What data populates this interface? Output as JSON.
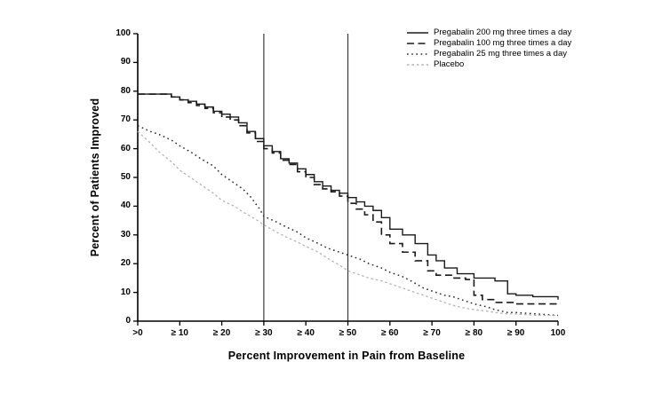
{
  "chart_data": {
    "type": "line",
    "title": "",
    "xlabel": "Percent Improvement in Pain from Baseline",
    "ylabel": "Percent of Patients Improved",
    "xlim": [
      0,
      100
    ],
    "ylim": [
      0,
      100
    ],
    "grid": false,
    "legend_position": "top-right",
    "x_tick_labels": [
      ">0",
      "≥ 10",
      "≥ 20",
      "≥ 30",
      "≥ 40",
      "≥ 50",
      "≥ 60",
      "≥ 70",
      "≥ 80",
      "≥ 90",
      "100"
    ],
    "y_tick_labels": [
      "100",
      "90",
      "80",
      "70",
      "60",
      "50",
      "40",
      "30",
      "20",
      "10",
      "0"
    ],
    "reference_lines_x": [
      30,
      50
    ],
    "axis_color": "#000000",
    "reference_line_color": "#3a3a3a",
    "series": [
      {
        "name": "Pregabalin 200 mg three times a day",
        "color": "#1a1a1a",
        "dash": "solid",
        "width": 1.4,
        "interpolation": "step",
        "x": [
          0,
          5,
          8,
          10,
          12,
          14,
          16,
          18,
          20,
          22,
          24,
          26,
          28,
          30,
          32,
          34,
          36,
          38,
          40,
          42,
          44,
          46,
          48,
          50,
          52,
          54,
          56,
          58,
          60,
          63,
          66,
          69,
          71,
          73,
          76,
          80,
          85,
          88,
          90,
          94,
          100
        ],
        "y": [
          79,
          79,
          78,
          77,
          76.5,
          75.5,
          74.5,
          73,
          72,
          71,
          69,
          66,
          63.5,
          61,
          59,
          56.5,
          55,
          53,
          51,
          48.5,
          47,
          45.5,
          44.5,
          43,
          41.5,
          40,
          38.5,
          36,
          32,
          30,
          27,
          23,
          21,
          18.5,
          16.5,
          15,
          14,
          9.5,
          9,
          8.5,
          7.5
        ]
      },
      {
        "name": "Pregabalin 100 mg three times a day",
        "color": "#1a1a1a",
        "dash": "dashed",
        "width": 1.6,
        "interpolation": "step",
        "x": [
          0,
          5,
          8,
          10,
          12,
          14,
          16,
          18,
          20,
          22,
          24,
          26,
          28,
          30,
          32,
          34,
          36,
          38,
          40,
          42,
          44,
          46,
          48,
          50,
          52,
          54,
          56,
          58,
          60,
          63,
          66,
          69,
          71,
          75,
          78,
          80,
          82,
          85,
          90,
          95,
          100
        ],
        "y": [
          79,
          79,
          78,
          77,
          76,
          75,
          74,
          72.5,
          71,
          70,
          68,
          65.5,
          62.5,
          60,
          58.5,
          56,
          54.5,
          52,
          50,
          47.5,
          46,
          45,
          43.5,
          41,
          39,
          37,
          34.5,
          30,
          27,
          24,
          21,
          17.5,
          16,
          15,
          14.5,
          9,
          7.5,
          6.5,
          6,
          6,
          5.5
        ]
      },
      {
        "name": "Pregabalin 25 mg three times a day",
        "color": "#262626",
        "dash": "dotted",
        "width": 1.5,
        "interpolation": "linear",
        "x": [
          0,
          3,
          5,
          8,
          10,
          13,
          15,
          18,
          20,
          23,
          25,
          27,
          29,
          30,
          33,
          35,
          38,
          40,
          43,
          45,
          48,
          50,
          53,
          55,
          58,
          60,
          63,
          65,
          68,
          70,
          73,
          75,
          78,
          80,
          83,
          85,
          88,
          90,
          95,
          100
        ],
        "y": [
          68,
          66,
          65,
          63,
          61,
          58.5,
          56.5,
          54,
          51,
          48,
          46,
          43,
          39,
          36.5,
          34.5,
          33,
          31,
          29,
          27,
          25.5,
          24,
          23,
          21.5,
          20,
          18.5,
          17,
          15.5,
          14,
          11.5,
          10.5,
          9,
          8.5,
          7,
          6,
          5,
          4,
          3,
          3,
          2.5,
          2
        ]
      },
      {
        "name": "Placebo",
        "color": "#b4b4b4",
        "dash": "finedash",
        "width": 1.3,
        "interpolation": "linear",
        "x": [
          0,
          3,
          5,
          8,
          10,
          13,
          15,
          18,
          20,
          23,
          25,
          28,
          30,
          33,
          35,
          38,
          40,
          43,
          45,
          48,
          50,
          53,
          55,
          58,
          60,
          63,
          65,
          68,
          70,
          73,
          75,
          78,
          80,
          83,
          85,
          88,
          90,
          95,
          100
        ],
        "y": [
          66,
          62,
          59,
          55.5,
          52.5,
          49.5,
          47.5,
          44.5,
          42,
          40,
          38,
          35.5,
          33.5,
          31,
          29.5,
          27.5,
          26,
          24,
          22,
          19.5,
          17.5,
          16,
          15,
          14,
          13,
          11.5,
          10.5,
          9,
          8,
          6.5,
          5.5,
          4.5,
          4,
          3.5,
          3,
          2.5,
          2.5,
          2,
          2
        ]
      }
    ]
  }
}
